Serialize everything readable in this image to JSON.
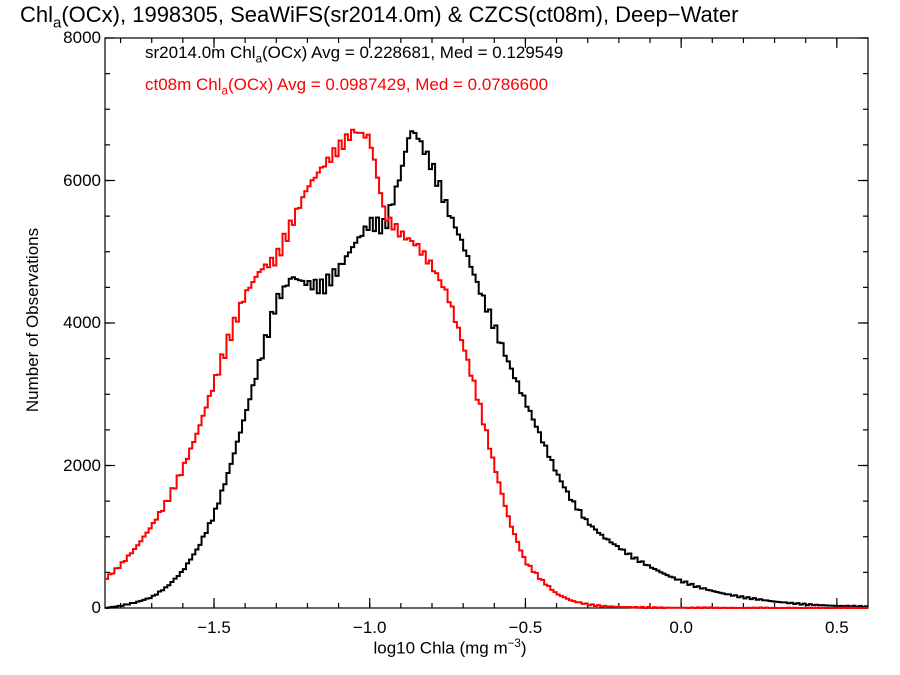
{
  "chart_data": {
    "type": "line",
    "title": {
      "pre": "Chl",
      "sub": "a",
      "post": "(OCx), 1998305, SeaWiFS(sr2014.0m) & CZCS(ct08m), Deep−Water"
    },
    "xlabel": {
      "pre": "log10 Chla (mg m",
      "sup": "−3",
      "post": ")"
    },
    "ylabel": "Number of Observations",
    "xlim": [
      -1.85,
      0.6
    ],
    "ylim": [
      0,
      8000
    ],
    "x_ticks": [
      {
        "value": -1.5,
        "label": "−1.5"
      },
      {
        "value": -1.0,
        "label": "−1.0"
      },
      {
        "value": -0.5,
        "label": "−0.5"
      },
      {
        "value": 0.0,
        "label": "0.0"
      },
      {
        "value": 0.5,
        "label": "0.5"
      }
    ],
    "y_ticks": [
      {
        "value": 0,
        "label": "0"
      },
      {
        "value": 2000,
        "label": "2000"
      },
      {
        "value": 4000,
        "label": "4000"
      },
      {
        "value": 6000,
        "label": "6000"
      },
      {
        "value": 8000,
        "label": "8000"
      }
    ],
    "grid": false,
    "legend_position": "top-left",
    "series": [
      {
        "label_pre": "sr2014.0m Chl",
        "label_sub": "a",
        "label_post": "(OCx) Avg = 0.228681, Med = 0.129549",
        "color": "#000000",
        "x": [
          -1.85,
          -1.8,
          -1.75,
          -1.7,
          -1.65,
          -1.6,
          -1.55,
          -1.5,
          -1.45,
          -1.4,
          -1.35,
          -1.3,
          -1.25,
          -1.2,
          -1.15,
          -1.1,
          -1.05,
          -1.0,
          -0.95,
          -0.9,
          -0.87,
          -0.85,
          -0.8,
          -0.75,
          -0.7,
          -0.65,
          -0.6,
          -0.55,
          -0.5,
          -0.45,
          -0.4,
          -0.35,
          -0.3,
          -0.25,
          -0.2,
          -0.15,
          -0.1,
          -0.05,
          0.0,
          0.05,
          0.1,
          0.15,
          0.2,
          0.25,
          0.3,
          0.35,
          0.4,
          0.45,
          0.5,
          0.55,
          0.6
        ],
        "y": [
          0,
          30,
          80,
          150,
          300,
          520,
          850,
          1300,
          1950,
          2700,
          3500,
          4300,
          4650,
          4550,
          4500,
          4750,
          5100,
          5400,
          5350,
          6100,
          6700,
          6650,
          6200,
          5600,
          5100,
          4500,
          3950,
          3400,
          2900,
          2400,
          1900,
          1500,
          1200,
          1000,
          850,
          700,
          580,
          470,
          380,
          300,
          240,
          190,
          150,
          120,
          90,
          70,
          50,
          40,
          30,
          25,
          20
        ]
      },
      {
        "label_pre": "ct08m Chl",
        "label_sub": "a",
        "label_post": "(OCx) Avg = 0.0987429, Med = 0.0786600",
        "color": "#ff0000",
        "x": [
          -1.85,
          -1.8,
          -1.75,
          -1.7,
          -1.65,
          -1.6,
          -1.55,
          -1.5,
          -1.45,
          -1.4,
          -1.35,
          -1.3,
          -1.25,
          -1.2,
          -1.15,
          -1.1,
          -1.05,
          -1.0,
          -0.95,
          -0.9,
          -0.85,
          -0.8,
          -0.75,
          -0.7,
          -0.65,
          -0.6,
          -0.55,
          -0.5,
          -0.45,
          -0.4,
          -0.35,
          -0.3,
          -0.25,
          -0.2,
          -0.15,
          -0.1,
          -0.05,
          0.0,
          0.1,
          0.2,
          0.3,
          0.4,
          0.5,
          0.6
        ],
        "y": [
          400,
          600,
          850,
          1150,
          1500,
          1950,
          2500,
          3150,
          3800,
          4400,
          4750,
          4900,
          5400,
          5900,
          6200,
          6450,
          6700,
          6600,
          5500,
          5250,
          5100,
          4800,
          4400,
          3700,
          2900,
          2000,
          1200,
          650,
          400,
          200,
          100,
          50,
          25,
          15,
          10,
          6,
          4,
          3,
          2,
          1,
          0,
          0,
          0,
          0
        ]
      }
    ]
  }
}
